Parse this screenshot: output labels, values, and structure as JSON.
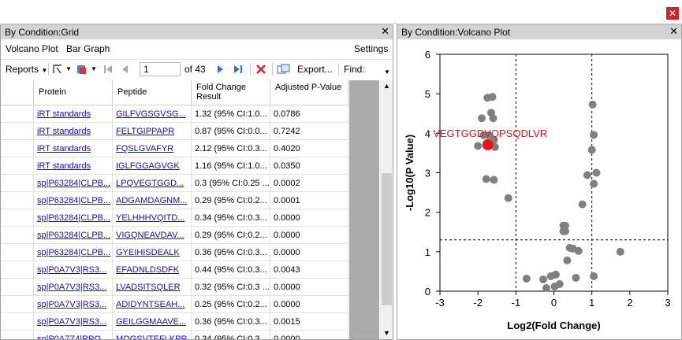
{
  "window": {
    "close_glyph": "✕"
  },
  "grid_panel": {
    "title": "By Condition:Grid",
    "close_glyph": "✕",
    "menu": {
      "volcano_plot": "Volcano Plot",
      "bar_graph": "Bar Graph",
      "settings": "Settings"
    },
    "toolbar": {
      "reports": "Reports",
      "page_value": "1",
      "page_of": "of 43",
      "export": "Export...",
      "find": "Find:"
    },
    "columns": [
      "Protein",
      "Peptide",
      "Fold Change Result",
      "Adjusted P-Value"
    ],
    "rows": [
      {
        "protein": "iRT standards",
        "peptide": "GILFVGSGVSG...",
        "fold_change": "1.32 (95% CI:1.0...",
        "p_value": "0.0786"
      },
      {
        "protein": "iRT standards",
        "peptide": "FELTGIPPAPR",
        "fold_change": "0.87 (95% CI:0.0...",
        "p_value": "0.7242"
      },
      {
        "protein": "iRT standards",
        "peptide": "FQSLGVAFYR",
        "fold_change": "2.12 (95% CI:0.3...",
        "p_value": "0.4020"
      },
      {
        "protein": "iRT standards",
        "peptide": "IGLFGGAGVGK",
        "fold_change": "1.16 (95% CI:1.0...",
        "p_value": "0.0350"
      },
      {
        "protein": "sp|P63284|CLPB...",
        "peptide": "LPQVEGTGGD...",
        "fold_change": "0.3 (95% CI:0.25 ...",
        "p_value": "0.0002"
      },
      {
        "protein": "sp|P63284|CLPB...",
        "peptide": "ADGAMDAGNM...",
        "fold_change": "0.29 (95% CI:0.2...",
        "p_value": "0.0001"
      },
      {
        "protein": "sp|P63284|CLPB...",
        "peptide": "YELHHHVQITD...",
        "fold_change": "0.34 (95% CI:0.3...",
        "p_value": "0.0000"
      },
      {
        "protein": "sp|P63284|CLPB...",
        "peptide": "VIGQNEAVDAV...",
        "fold_change": "0.29 (95% CI:0.2...",
        "p_value": "0.0000"
      },
      {
        "protein": "sp|P63284|CLPB...",
        "peptide": "GYEIHISDEALK",
        "fold_change": "0.36 (95% CI:0.3...",
        "p_value": "0.0000"
      },
      {
        "protein": "sp|P0A7V3|RS3...",
        "peptide": "EFADNLDSDFK",
        "fold_change": "0.44 (95% CI:0.3...",
        "p_value": "0.0043"
      },
      {
        "protein": "sp|P0A7V3|RS3...",
        "peptide": "LVADSITSQLER",
        "fold_change": "0.32 (95% CI:0.3 ...",
        "p_value": "0.0000"
      },
      {
        "protein": "sp|P0A7V3|RS3...",
        "peptide": "ADIDYNTSEAH...",
        "fold_change": "0.25 (95% CI:0.2...",
        "p_value": "0.0000"
      },
      {
        "protein": "sp|P0A7V3|RS3...",
        "peptide": "GEILGGMAAVE...",
        "fold_change": "0.36 (95% CI:0.3...",
        "p_value": "0.0015"
      },
      {
        "protein": "sp|P0A7Z4|RPO...",
        "peptide": "MQGSVTEFLKPR",
        "fold_change": "0.34 (95% CI:0.3...",
        "p_value": "0.0000"
      }
    ]
  },
  "volcano_panel": {
    "title": "By Condition:Volcano Plot",
    "close_glyph": "✕"
  },
  "chart_data": {
    "type": "scatter",
    "xlabel": "Log2(Fold Change)",
    "ylabel": "-Log10(P Value)",
    "xlim": [
      -3,
      3
    ],
    "ylim": [
      0,
      6
    ],
    "xticks": [
      "-3",
      "-2",
      "-1",
      "0",
      "1",
      "2",
      "3"
    ],
    "yticks": [
      "0",
      "1",
      "2",
      "3",
      "4",
      "5",
      "6"
    ],
    "thresholds": {
      "x": [
        -1,
        1
      ],
      "y": 1.3
    },
    "highlight": {
      "x": -1.74,
      "y": 3.71,
      "label": "VEGTGGDVQPSQDLVR",
      "color": "#e8121a"
    },
    "point_color": "#808080",
    "points": [
      [
        -1.75,
        4.9
      ],
      [
        -1.62,
        4.92
      ],
      [
        -1.9,
        4.38
      ],
      [
        -1.65,
        4.52
      ],
      [
        -1.6,
        4.38
      ],
      [
        -1.85,
        3.95
      ],
      [
        -1.72,
        3.95
      ],
      [
        -1.58,
        3.83
      ],
      [
        -2.0,
        3.68
      ],
      [
        -1.65,
        3.72
      ],
      [
        -1.55,
        3.65
      ],
      [
        -1.78,
        2.84
      ],
      [
        -1.58,
        2.82
      ],
      [
        -1.2,
        2.36
      ],
      [
        1.02,
        4.73
      ],
      [
        1.05,
        3.96
      ],
      [
        1.0,
        3.58
      ],
      [
        1.12,
        3.0
      ],
      [
        0.88,
        2.94
      ],
      [
        1.05,
        2.72
      ],
      [
        0.75,
        2.2
      ],
      [
        0.25,
        1.66
      ],
      [
        0.3,
        1.66
      ],
      [
        0.25,
        1.52
      ],
      [
        0.3,
        1.52
      ],
      [
        0.42,
        1.1
      ],
      [
        0.5,
        1.08
      ],
      [
        0.65,
        1.02
      ],
      [
        1.75,
        1.0
      ],
      [
        0.35,
        0.78
      ],
      [
        1.05,
        0.38
      ],
      [
        0.58,
        0.34
      ],
      [
        0.05,
        0.42
      ],
      [
        -0.08,
        0.38
      ],
      [
        -0.72,
        0.32
      ],
      [
        -0.28,
        0.3
      ],
      [
        0.15,
        0.18
      ],
      [
        0.02,
        0.12
      ],
      [
        -0.2,
        0.08
      ]
    ]
  }
}
